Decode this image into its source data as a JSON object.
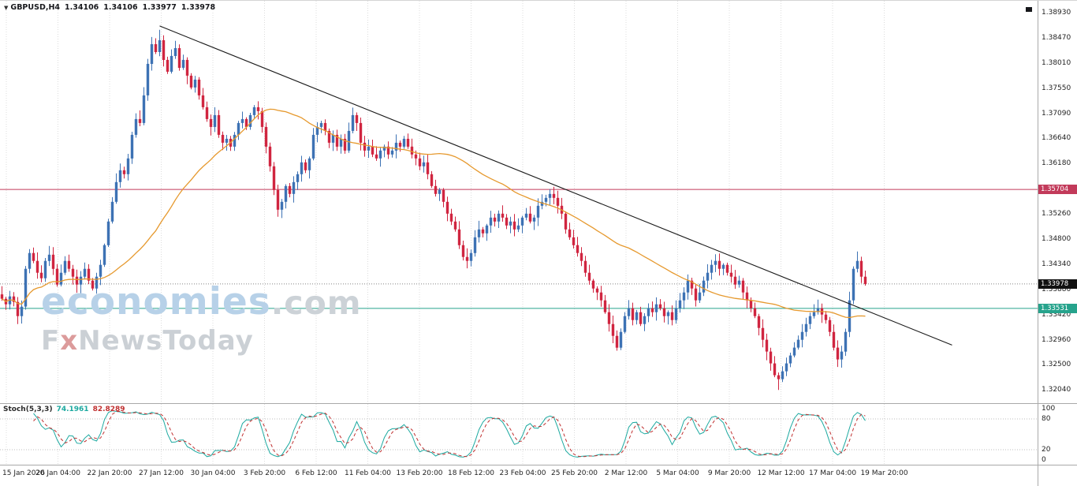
{
  "header": {
    "symbol": "GBPUSD,H4",
    "open": "1.34106",
    "high": "1.34106",
    "low": "1.33977",
    "close": "1.33978"
  },
  "watermark": {
    "brand": "economies",
    "brand_suffix": ".com",
    "news_f": "F",
    "news_x": "x",
    "news_rest": "NewsToday"
  },
  "price_axis": {
    "labels": [
      "1.38930",
      "1.38470",
      "1.38010",
      "1.37550",
      "1.37090",
      "1.36640",
      "1.36180",
      "1.35720",
      "1.35260",
      "1.34800",
      "1.34340",
      "1.33880",
      "1.33420",
      "1.32960",
      "1.32500",
      "1.32040"
    ]
  },
  "levels": {
    "resistance": {
      "value": "1.35704",
      "color": "#c23a5a"
    },
    "support": {
      "value": "1.33531",
      "color": "#26a38c"
    },
    "current": {
      "value": "1.33978",
      "color": "#111111"
    }
  },
  "stoch": {
    "label": "Stoch(5,3,3)",
    "value_k": "74.1961",
    "value_d": "82.8289",
    "axis": [
      "100",
      "80",
      "20",
      "0"
    ],
    "level_lines": [
      80,
      20
    ]
  },
  "time_axis": [
    "15 Jan 2026",
    "20 Jan 04:00",
    "22 Jan 20:00",
    "27 Jan 12:00",
    "30 Jan 04:00",
    "3 Feb 20:00",
    "6 Feb 12:00",
    "11 Feb 04:00",
    "13 Feb 20:00",
    "18 Feb 12:00",
    "23 Feb 04:00",
    "25 Feb 20:00",
    "2 Mar 12:00",
    "5 Mar 04:00",
    "9 Mar 20:00",
    "12 Mar 12:00",
    "17 Mar 04:00",
    "19 Mar 20:00"
  ],
  "chart_data": {
    "type": "candlestick",
    "symbol": "GBPUSD",
    "timeframe": "H4",
    "price_max": 1.3915,
    "price_min": 1.318,
    "candle_spacing": 5,
    "candle_width": 3.4,
    "ma_period": 40,
    "max_high": 1.3862,
    "min_low": 1.3204,
    "spike_high": 1.3457,
    "trendline": {
      "start_index": 40,
      "start_price": 1.3869,
      "end_index": 241,
      "end_price": 1.3286
    },
    "colors": {
      "up": "#3d72b4",
      "down": "#d02540",
      "ma": "#e6992e",
      "trend": "#1a1a1a",
      "grid": "#dcdcdc",
      "stoch_k": "#1ca9a0",
      "stoch_d": "#c03030"
    },
    "stoch_params": {
      "k_period": 5,
      "slowing": 3,
      "d_period": 3
    },
    "closes": [
      1.33707,
      1.33606,
      1.3375,
      1.33649,
      1.3339,
      1.33563,
      1.34254,
      1.34542,
      1.34398,
      1.34182,
      1.34081,
      1.34398,
      1.34513,
      1.34254,
      1.33966,
      1.34182,
      1.34398,
      1.34254,
      1.3411,
      1.33966,
      1.3411,
      1.34254,
      1.34038,
      1.33894,
      1.3411,
      1.34326,
      1.34686,
      1.35118,
      1.35478,
      1.35838,
      1.36054,
      1.35982,
      1.3627,
      1.36702,
      1.3699,
      1.36918,
      1.37422,
      1.37998,
      1.38358,
      1.38214,
      1.3843,
      1.3807,
      1.37854,
      1.38142,
      1.38286,
      1.37926,
      1.3807,
      1.37782,
      1.37566,
      1.3771,
      1.37422,
      1.37206,
      1.3699,
      1.36846,
      1.37062,
      1.36702,
      1.36558,
      1.3663,
      1.36486,
      1.36702,
      1.36918,
      1.3699,
      1.36846,
      1.37062,
      1.37206,
      1.37134,
      1.36846,
      1.36486,
      1.36126,
      1.35694,
      1.35334,
      1.35478,
      1.35766,
      1.35622,
      1.35838,
      1.35982,
      1.36198,
      1.36054,
      1.3627,
      1.36702,
      1.36846,
      1.36918,
      1.36774,
      1.36558,
      1.36702,
      1.36486,
      1.3663,
      1.36414,
      1.36774,
      1.37062,
      1.36918,
      1.36558,
      1.36414,
      1.36486,
      1.36342,
      1.3627,
      1.36414,
      1.36486,
      1.36342,
      1.36414,
      1.36558,
      1.36486,
      1.3663,
      1.36486,
      1.36342,
      1.3627,
      1.36126,
      1.36198,
      1.35982,
      1.35766,
      1.35622,
      1.35694,
      1.35478,
      1.35262,
      1.35118,
      1.34974,
      1.34686,
      1.3447,
      1.34398,
      1.34542,
      1.3483,
      1.34974,
      1.34902,
      1.35046,
      1.3519,
      1.35118,
      1.35262,
      1.3519,
      1.35046,
      1.35118,
      1.34974,
      1.35046,
      1.3519,
      1.35262,
      1.35118,
      1.3519,
      1.35406,
      1.35478,
      1.3555,
      1.35622,
      1.3555,
      1.35406,
      1.35262,
      1.34974,
      1.3483,
      1.34686,
      1.34542,
      1.34398,
      1.34182,
      1.34038,
      1.33894,
      1.33822,
      1.33678,
      1.33462,
      1.33246,
      1.3303,
      1.32814,
      1.33102,
      1.3339,
      1.33534,
      1.33318,
      1.33462,
      1.33246,
      1.3339,
      1.33534,
      1.33462,
      1.33606,
      1.33534,
      1.3339,
      1.33462,
      1.33318,
      1.33534,
      1.33678,
      1.33822,
      1.34038,
      1.33894,
      1.33678,
      1.33822,
      1.34038,
      1.34182,
      1.34326,
      1.34398,
      1.34254,
      1.34326,
      1.34182,
      1.3411,
      1.33966,
      1.34038,
      1.33822,
      1.33678,
      1.33534,
      1.3339,
      1.33174,
      1.32958,
      1.32742,
      1.32526,
      1.3231,
      1.32238,
      1.32382,
      1.32526,
      1.3267,
      1.32814,
      1.32958,
      1.33102,
      1.33246,
      1.3339,
      1.33462,
      1.33534,
      1.33419,
      1.33318,
      1.33102,
      1.32814,
      1.32598,
      1.32742,
      1.33102,
      1.33678,
      1.34254,
      1.34398,
      1.3411,
      1.33978
    ]
  }
}
